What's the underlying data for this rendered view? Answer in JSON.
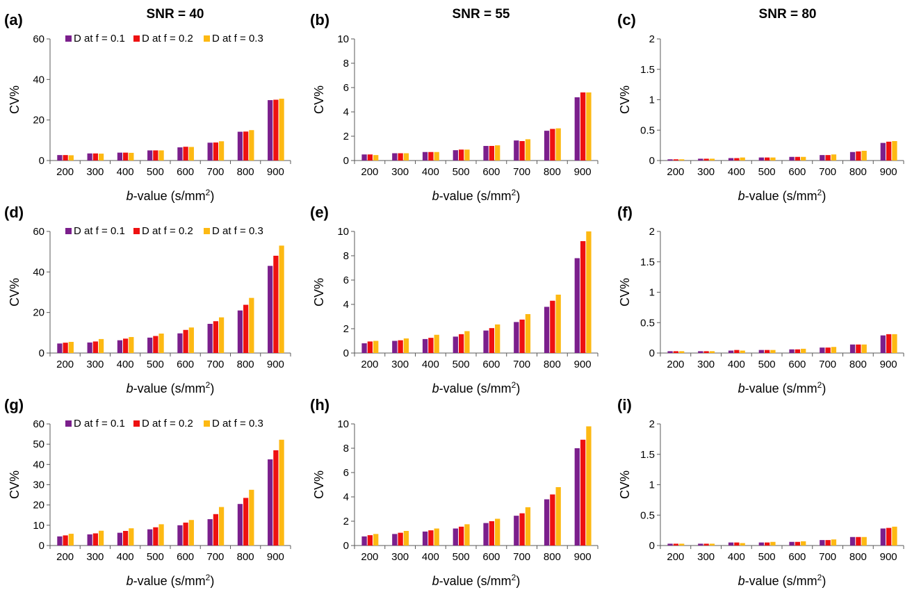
{
  "column_titles": [
    "SNR = 40",
    "SNR = 55",
    "SNR = 80"
  ],
  "colors": {
    "f01": "#7B1F8C",
    "f02": "#EE1111",
    "f03": "#FDB913",
    "axis": "#595959"
  },
  "chart_data": [
    {
      "label": "(a)",
      "type": "bar",
      "categories": [
        "200",
        "300",
        "400",
        "500",
        "600",
        "700",
        "800",
        "900"
      ],
      "ylim": [
        0,
        60
      ],
      "yticks": [
        0,
        20,
        40,
        60
      ],
      "ylabel": "CV%",
      "xlabel_prefix": "b",
      "xlabel_rest": "-value (s/mm",
      "xlabel_sup": "2",
      "xlabel_end": ")",
      "legend": "top-left",
      "series": [
        {
          "name": "D at f = 0.1",
          "values": [
            2.7,
            3.5,
            3.9,
            5.0,
            6.5,
            8.8,
            14.2,
            29.8
          ]
        },
        {
          "name": "D at f = 0.2",
          "values": [
            2.7,
            3.5,
            3.9,
            5.0,
            6.8,
            8.9,
            14.3,
            30.0
          ]
        },
        {
          "name": "D at f = 0.3",
          "values": [
            2.6,
            3.4,
            3.8,
            5.0,
            6.7,
            9.5,
            15.0,
            30.5
          ]
        }
      ]
    },
    {
      "label": "(b)",
      "type": "bar",
      "categories": [
        "200",
        "300",
        "400",
        "500",
        "600",
        "700",
        "800",
        "900"
      ],
      "ylim": [
        0,
        10
      ],
      "yticks": [
        0,
        2,
        4,
        6,
        8,
        10
      ],
      "ylabel": "CV%",
      "xlabel_prefix": "b",
      "xlabel_rest": "-value (s/mm",
      "xlabel_sup": "2",
      "xlabel_end": ")",
      "series": [
        {
          "name": "D at f = 0.1",
          "values": [
            0.5,
            0.6,
            0.7,
            0.85,
            1.2,
            1.65,
            2.45,
            5.2
          ]
        },
        {
          "name": "D at f = 0.2",
          "values": [
            0.5,
            0.6,
            0.7,
            0.9,
            1.2,
            1.6,
            2.6,
            5.6
          ]
        },
        {
          "name": "D at f = 0.3",
          "values": [
            0.45,
            0.6,
            0.7,
            0.9,
            1.25,
            1.75,
            2.65,
            5.6
          ]
        }
      ]
    },
    {
      "label": "(c)",
      "type": "bar",
      "categories": [
        "200",
        "300",
        "400",
        "500",
        "600",
        "700",
        "800",
        "900"
      ],
      "ylim": [
        0,
        2
      ],
      "yticks": [
        "0",
        "0.5",
        "1",
        "1.5",
        "2"
      ],
      "ylabel": "CV%",
      "xlabel_prefix": "b",
      "xlabel_rest": "-value (s/mm",
      "xlabel_sup": "2",
      "xlabel_end": ")",
      "series": [
        {
          "name": "D at f = 0.1",
          "values": [
            0.02,
            0.03,
            0.04,
            0.05,
            0.06,
            0.09,
            0.14,
            0.29
          ]
        },
        {
          "name": "D at f = 0.2",
          "values": [
            0.02,
            0.03,
            0.04,
            0.05,
            0.06,
            0.09,
            0.15,
            0.31
          ]
        },
        {
          "name": "D at f = 0.3",
          "values": [
            0.02,
            0.03,
            0.05,
            0.05,
            0.06,
            0.1,
            0.16,
            0.32
          ]
        }
      ]
    },
    {
      "label": "(d)",
      "type": "bar",
      "categories": [
        "200",
        "300",
        "400",
        "500",
        "600",
        "700",
        "800",
        "900"
      ],
      "ylim": [
        0,
        60
      ],
      "yticks": [
        0,
        20,
        40,
        60
      ],
      "ylabel": "CV%",
      "xlabel_prefix": "b",
      "xlabel_rest": "-value (s/mm",
      "xlabel_sup": "2",
      "xlabel_end": ")",
      "legend": "top-left",
      "series": [
        {
          "name": "D at f = 0.1",
          "values": [
            4.7,
            5.2,
            6.3,
            7.6,
            9.7,
            14.4,
            21.0,
            43.0
          ]
        },
        {
          "name": "D at f = 0.2",
          "values": [
            5.1,
            5.7,
            7.1,
            8.4,
            11.4,
            15.7,
            23.8,
            48.0
          ]
        },
        {
          "name": "D at f = 0.3",
          "values": [
            5.5,
            6.9,
            7.9,
            9.6,
            12.6,
            17.6,
            27.2,
            53.0
          ]
        }
      ]
    },
    {
      "label": "(e)",
      "type": "bar",
      "categories": [
        "200",
        "300",
        "400",
        "500",
        "600",
        "700",
        "800",
        "900"
      ],
      "ylim": [
        0,
        10
      ],
      "yticks": [
        0,
        2,
        4,
        6,
        8,
        10
      ],
      "ylabel": "CV%",
      "xlabel_prefix": "b",
      "xlabel_rest": "-value (s/mm",
      "xlabel_sup": "2",
      "xlabel_end": ")",
      "series": [
        {
          "name": "D at f = 0.1",
          "values": [
            0.8,
            1.0,
            1.15,
            1.35,
            1.85,
            2.55,
            3.8,
            7.8
          ]
        },
        {
          "name": "D at f = 0.2",
          "values": [
            0.95,
            1.05,
            1.25,
            1.55,
            2.05,
            2.75,
            4.3,
            9.2
          ]
        },
        {
          "name": "D at f = 0.3",
          "values": [
            1.0,
            1.2,
            1.5,
            1.8,
            2.35,
            3.2,
            4.8,
            10.0
          ]
        }
      ]
    },
    {
      "label": "(f)",
      "type": "bar",
      "categories": [
        "200",
        "300",
        "400",
        "500",
        "600",
        "700",
        "800",
        "900"
      ],
      "ylim": [
        0,
        2
      ],
      "yticks": [
        "0",
        "0.5",
        "1",
        "1.5",
        "2"
      ],
      "ylabel": "CV%",
      "xlabel_prefix": "b",
      "xlabel_rest": "-value (s/mm",
      "xlabel_sup": "2",
      "xlabel_end": ")",
      "series": [
        {
          "name": "D at f = 0.1",
          "values": [
            0.03,
            0.03,
            0.04,
            0.05,
            0.06,
            0.09,
            0.14,
            0.29
          ]
        },
        {
          "name": "D at f = 0.2",
          "values": [
            0.03,
            0.03,
            0.05,
            0.05,
            0.06,
            0.09,
            0.14,
            0.31
          ]
        },
        {
          "name": "D at f = 0.3",
          "values": [
            0.03,
            0.03,
            0.04,
            0.05,
            0.07,
            0.1,
            0.14,
            0.31
          ]
        }
      ]
    },
    {
      "label": "(g)",
      "type": "bar",
      "categories": [
        "200",
        "300",
        "400",
        "500",
        "600",
        "700",
        "800",
        "900"
      ],
      "ylim": [
        0,
        60
      ],
      "yticks": [
        0,
        10,
        20,
        30,
        40,
        50,
        60
      ],
      "ylabel": "CV%",
      "xlabel_prefix": "b",
      "xlabel_rest": "-value (s/mm",
      "xlabel_sup": "2",
      "xlabel_end": ")",
      "legend": "top-left",
      "series": [
        {
          "name": "D at f = 0.1",
          "values": [
            4.5,
            5.5,
            6.3,
            8.0,
            10.0,
            13.0,
            20.5,
            42.5
          ]
        },
        {
          "name": "D at f = 0.2",
          "values": [
            5.0,
            6.0,
            7.2,
            9.0,
            11.3,
            15.5,
            23.5,
            47.0
          ]
        },
        {
          "name": "D at f = 0.3",
          "values": [
            5.8,
            7.3,
            8.5,
            10.5,
            12.6,
            19.0,
            27.5,
            52.2
          ]
        }
      ]
    },
    {
      "label": "(h)",
      "type": "bar",
      "categories": [
        "200",
        "300",
        "400",
        "500",
        "600",
        "700",
        "800",
        "900"
      ],
      "ylim": [
        0,
        10
      ],
      "yticks": [
        0,
        2,
        4,
        6,
        8,
        10
      ],
      "ylabel": "CV%",
      "xlabel_prefix": "b",
      "xlabel_rest": "-value (s/mm",
      "xlabel_sup": "2",
      "xlabel_end": ")",
      "series": [
        {
          "name": "D at f = 0.1",
          "values": [
            0.75,
            0.95,
            1.15,
            1.4,
            1.85,
            2.45,
            3.8,
            8.0
          ]
        },
        {
          "name": "D at f = 0.2",
          "values": [
            0.85,
            1.05,
            1.25,
            1.55,
            2.0,
            2.65,
            4.2,
            8.7
          ]
        },
        {
          "name": "D at f = 0.3",
          "values": [
            0.95,
            1.2,
            1.4,
            1.75,
            2.2,
            3.15,
            4.8,
            9.8
          ]
        }
      ]
    },
    {
      "label": "(i)",
      "type": "bar",
      "categories": [
        "200",
        "300",
        "400",
        "500",
        "600",
        "700",
        "800",
        "900"
      ],
      "ylim": [
        0,
        2
      ],
      "yticks": [
        "0",
        "0.5",
        "1",
        "1.5",
        "2"
      ],
      "ylabel": "CV%",
      "xlabel_prefix": "b",
      "xlabel_rest": "-value (s/mm",
      "xlabel_sup": "2",
      "xlabel_end": ")",
      "series": [
        {
          "name": "D at f = 0.1",
          "values": [
            0.03,
            0.03,
            0.05,
            0.05,
            0.06,
            0.09,
            0.14,
            0.28
          ]
        },
        {
          "name": "D at f = 0.2",
          "values": [
            0.03,
            0.03,
            0.05,
            0.05,
            0.06,
            0.09,
            0.14,
            0.29
          ]
        },
        {
          "name": "D at f = 0.3",
          "values": [
            0.03,
            0.03,
            0.04,
            0.06,
            0.07,
            0.1,
            0.14,
            0.31
          ]
        }
      ]
    }
  ]
}
